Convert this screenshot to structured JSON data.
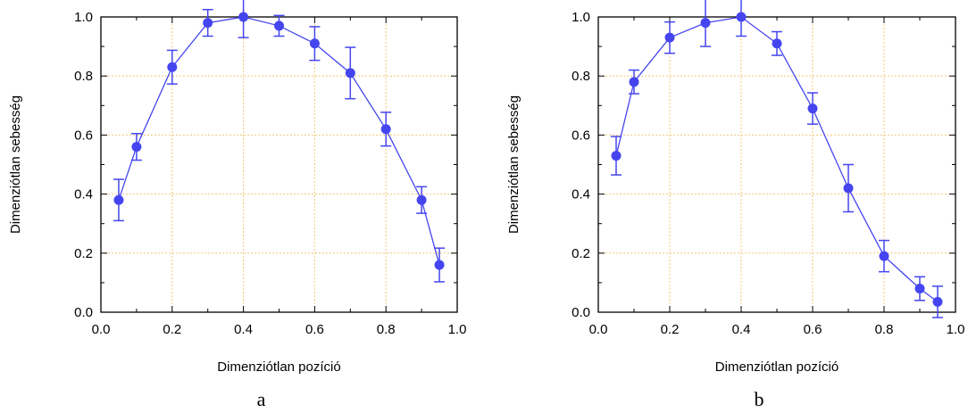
{
  "chart_data": [
    {
      "type": "line",
      "panel_label": "a",
      "xlabel": "Dimenziótlan pozíció",
      "ylabel": "Dimenziótlan sebesség",
      "xlim": [
        0.0,
        1.0
      ],
      "ylim": [
        0.0,
        1.0
      ],
      "xticks": [
        "0.0",
        "0.2",
        "0.4",
        "0.6",
        "0.8",
        "1.0"
      ],
      "yticks": [
        "0.0",
        "0.2",
        "0.4",
        "0.6",
        "0.8",
        "1.0"
      ],
      "grid": true,
      "series_color": "#4545f0",
      "grid_color": "#f0c878",
      "x": [
        0.05,
        0.1,
        0.2,
        0.3,
        0.4,
        0.5,
        0.6,
        0.7,
        0.8,
        0.9,
        0.95
      ],
      "y": [
        0.38,
        0.56,
        0.83,
        0.98,
        1.0,
        0.97,
        0.91,
        0.81,
        0.62,
        0.38,
        0.16
      ],
      "error": [
        0.07,
        0.045,
        0.057,
        0.045,
        0.07,
        0.035,
        0.057,
        0.087,
        0.057,
        0.045,
        0.057
      ]
    },
    {
      "type": "line",
      "panel_label": "b",
      "xlabel": "Dimenziótlan pozíció",
      "ylabel": "Dimenziótlan sebesség",
      "xlim": [
        0.0,
        1.0
      ],
      "ylim": [
        0.0,
        1.0
      ],
      "xticks": [
        "0.0",
        "0.2",
        "0.4",
        "0.6",
        "0.8",
        "1.0"
      ],
      "yticks": [
        "0.0",
        "0.2",
        "0.4",
        "0.6",
        "0.8",
        "1.0"
      ],
      "grid": true,
      "series_color": "#4545f0",
      "grid_color": "#f0c878",
      "x": [
        0.05,
        0.1,
        0.2,
        0.3,
        0.4,
        0.5,
        0.6,
        0.7,
        0.8,
        0.9,
        0.95
      ],
      "y": [
        0.53,
        0.78,
        0.93,
        0.98,
        1.0,
        0.91,
        0.69,
        0.42,
        0.19,
        0.08,
        0.035
      ],
      "error": [
        0.065,
        0.04,
        0.053,
        0.08,
        0.065,
        0.04,
        0.053,
        0.08,
        0.053,
        0.04,
        0.053
      ]
    }
  ]
}
